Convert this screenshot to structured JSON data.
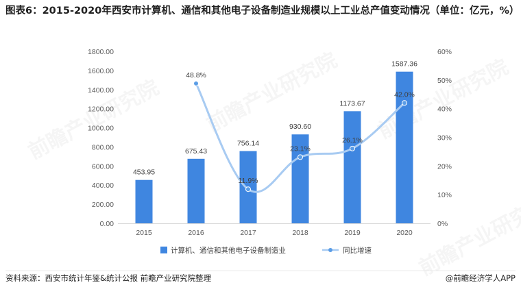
{
  "title": "图表6：2015-2020年西安市计算机、通信和其他电子设备制造业规模以上工业总产值变动情况（单位：亿元，%）",
  "footer": {
    "source": "资料来源：西安市统计年鉴&统计公报 前瞻产业研究院整理",
    "brand": "@前瞻经济学人APP"
  },
  "watermark": "前瞻产业研究院",
  "colors": {
    "bar": "#3f86e0",
    "line": "#a8cbf2",
    "marker": "#5b9de6"
  },
  "chart_data": {
    "type": "bar",
    "categories": [
      "2015",
      "2016",
      "2017",
      "2018",
      "2019",
      "2020"
    ],
    "series": [
      {
        "name": "计算机、通信和其他电子设备制造业",
        "type": "bar",
        "axis": "left",
        "values": [
          453.95,
          675.43,
          756.14,
          930.6,
          1173.67,
          1587.36
        ],
        "labels": [
          "453.95",
          "675.43",
          "756.14",
          "930.60",
          "1173.67",
          "1587.36"
        ]
      },
      {
        "name": "同比增速",
        "type": "line",
        "axis": "right",
        "values": [
          null,
          48.8,
          11.9,
          23.1,
          26.1,
          42.0
        ],
        "labels": [
          "",
          "48.8%",
          "11.9%",
          "23.1%",
          "26.1%",
          "42.0%"
        ]
      }
    ],
    "y_left": {
      "min": 0,
      "max": 1800,
      "step": 200,
      "ticks": [
        "0.00",
        "200.00",
        "400.00",
        "600.00",
        "800.00",
        "1000.00",
        "1200.00",
        "1400.00",
        "1600.00",
        "1800.00"
      ]
    },
    "y_right": {
      "min": 0,
      "max": 60,
      "step": 10,
      "ticks": [
        "0%",
        "10%",
        "20%",
        "30%",
        "40%",
        "50%",
        "60%"
      ]
    },
    "grid": false,
    "legend": "bottom"
  }
}
